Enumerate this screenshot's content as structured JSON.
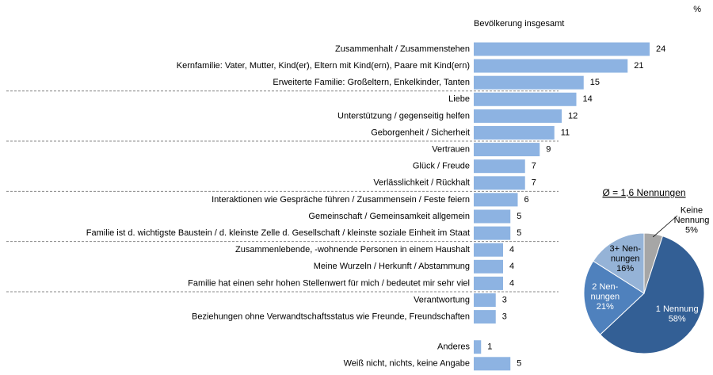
{
  "chart_data": [
    {
      "type": "hbar",
      "title": "Bevölkerung insgesamt",
      "unit": "%",
      "color": "#8db3e2",
      "categories": [
        "Zusammenhalt / Zusammenstehen",
        "Kernfamilie: Vater, Mutter, Kind(er), Eltern mit Kind(ern), Paare mit Kind(ern)",
        "Erweiterte Familie: Großeltern, Enkelkinder, Tanten",
        "Liebe",
        "Unterstützung / gegenseitig helfen",
        "Geborgenheit / Sicherheit",
        "Vertrauen",
        "Glück / Freude",
        "Verlässlichkeit / Rückhalt",
        "Interaktionen wie Gespräche führen / Zusammensein / Feste feiern",
        "Gemeinschaft / Gemeinsamkeit allgemein",
        "Familie ist d. wichtigste Baustein / d. kleinste Zelle d. Gesellschaft / kleinste soziale Einheit im Staat",
        "Zusammenlebende, -wohnende Personen in einem Haushalt",
        "Meine Wurzeln / Herkunft / Abstammung",
        "Familie hat einen sehr hohen Stellenwert für mich / bedeutet mir sehr viel",
        "Verantwortung",
        "Beziehungen ohne Verwandtschaftsstatus wie Freunde, Freundschaften",
        "Anderes",
        "Weiß nicht, nichts, keine Angabe"
      ],
      "values": [
        24,
        21,
        15,
        14,
        12,
        11,
        9,
        7,
        7,
        6,
        5,
        5,
        4,
        4,
        4,
        3,
        3,
        1,
        5
      ]
    },
    {
      "type": "pie",
      "title": "Ø = 1,6 Nennungen",
      "categories": [
        [
          "Keine",
          "Nennung"
        ],
        [
          "1 Nennung"
        ],
        [
          "2 Nen-",
          "nungen"
        ],
        [
          "3+ Nen-",
          "nungen"
        ]
      ],
      "values": [
        5,
        58,
        21,
        16
      ],
      "value_labels": [
        "5%",
        "58%",
        "21%",
        "16%"
      ],
      "colors": [
        "#a6a6a6",
        "#335f95",
        "#4f81bd",
        "#95b3d7"
      ]
    }
  ]
}
